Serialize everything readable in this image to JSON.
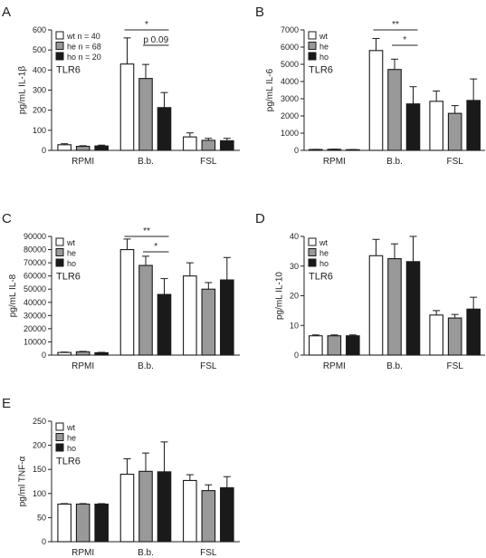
{
  "colors": {
    "wt": "#ffffff",
    "he": "#999999",
    "ho": "#1a1a1a",
    "stroke": "#1a1a1a"
  },
  "chart_data": [
    {
      "type": "bar",
      "panel": "A",
      "ylabel": "pg/mL IL-1β",
      "annotation": "TLR6",
      "ylim": [
        0,
        600
      ],
      "yticks": [
        0,
        100,
        200,
        300,
        400,
        500,
        600
      ],
      "categories": [
        "RPMI",
        "B.b.",
        "FSL"
      ],
      "series": [
        {
          "name": "wt n = 40",
          "key": "wt",
          "values": [
            28,
            430,
            67
          ],
          "errors": [
            5,
            130,
            20
          ]
        },
        {
          "name": "he n = 68",
          "key": "he",
          "values": [
            20,
            358,
            50
          ],
          "errors": [
            3,
            70,
            10
          ]
        },
        {
          "name": "ho n = 20",
          "key": "ho",
          "values": [
            22,
            213,
            48
          ],
          "errors": [
            4,
            75,
            12
          ]
        }
      ],
      "significance": [
        {
          "from": 0,
          "to": 2,
          "label": "*"
        },
        {
          "from": 1,
          "to": 2,
          "label": "p 0.09"
        }
      ]
    },
    {
      "type": "bar",
      "panel": "B",
      "ylabel": "pg/mL IL-6",
      "annotation": "TLR6",
      "ylim": [
        0,
        7000
      ],
      "yticks": [
        0,
        1000,
        2000,
        3000,
        4000,
        5000,
        6000,
        7000
      ],
      "categories": [
        "RPMI",
        "B.b.",
        "FSL"
      ],
      "series": [
        {
          "name": "wt",
          "key": "wt",
          "values": [
            50,
            5800,
            2850
          ],
          "errors": [
            10,
            700,
            600
          ]
        },
        {
          "name": "he",
          "key": "he",
          "values": [
            60,
            4700,
            2150
          ],
          "errors": [
            10,
            600,
            450
          ]
        },
        {
          "name": "ho",
          "key": "ho",
          "values": [
            40,
            2700,
            2900
          ],
          "errors": [
            10,
            1000,
            1250
          ]
        }
      ],
      "significance": [
        {
          "from": 0,
          "to": 2,
          "label": "**"
        },
        {
          "from": 1,
          "to": 2,
          "label": "*"
        }
      ]
    },
    {
      "type": "bar",
      "panel": "C",
      "ylabel": "pg/mL IL-8",
      "annotation": "TLR6",
      "ylim": [
        0,
        90000
      ],
      "yticks": [
        0,
        10000,
        20000,
        30000,
        40000,
        50000,
        60000,
        70000,
        80000,
        90000
      ],
      "categories": [
        "RPMI",
        "B.b.",
        "FSL"
      ],
      "series": [
        {
          "name": "wt",
          "key": "wt",
          "values": [
            2000,
            80000,
            60000
          ],
          "errors": [
            300,
            8000,
            10000
          ]
        },
        {
          "name": "he",
          "key": "he",
          "values": [
            2500,
            68000,
            50000
          ],
          "errors": [
            300,
            7000,
            5000
          ]
        },
        {
          "name": "ho",
          "key": "ho",
          "values": [
            1800,
            46000,
            57000
          ],
          "errors": [
            300,
            12000,
            17000
          ]
        }
      ],
      "significance": [
        {
          "from": 0,
          "to": 2,
          "label": "**"
        },
        {
          "from": 1,
          "to": 2,
          "label": "*"
        }
      ]
    },
    {
      "type": "bar",
      "panel": "D",
      "ylabel": "pg/mL IL-10",
      "annotation": "TLR6",
      "ylim": [
        0,
        40
      ],
      "yticks": [
        0,
        10,
        20,
        30,
        40
      ],
      "categories": [
        "RPMI",
        "B.b.",
        "FSL"
      ],
      "series": [
        {
          "name": "wt",
          "key": "wt",
          "values": [
            6.5,
            33.5,
            13.5
          ],
          "errors": [
            0.3,
            5.5,
            1.5
          ]
        },
        {
          "name": "he",
          "key": "he",
          "values": [
            6.5,
            32.5,
            12.5
          ],
          "errors": [
            0.3,
            5,
            1.2
          ]
        },
        {
          "name": "ho",
          "key": "ho",
          "values": [
            6.5,
            31.5,
            15.5
          ],
          "errors": [
            0.3,
            8.5,
            4
          ]
        }
      ],
      "significance": []
    },
    {
      "type": "bar",
      "panel": "E",
      "ylabel": "pg/ml TNF-α",
      "annotation": "TLR6",
      "ylim": [
        0,
        250
      ],
      "yticks": [
        0,
        50,
        100,
        150,
        200,
        250
      ],
      "categories": [
        "RPMI",
        "B.b.",
        "FSL"
      ],
      "series": [
        {
          "name": "wt",
          "key": "wt",
          "values": [
            78,
            140,
            127
          ],
          "errors": [
            1,
            32,
            12
          ]
        },
        {
          "name": "he",
          "key": "he",
          "values": [
            78,
            146,
            106
          ],
          "errors": [
            1,
            38,
            12
          ]
        },
        {
          "name": "ho",
          "key": "ho",
          "values": [
            78,
            145,
            112
          ],
          "errors": [
            1,
            62,
            23
          ]
        }
      ],
      "significance": []
    }
  ]
}
